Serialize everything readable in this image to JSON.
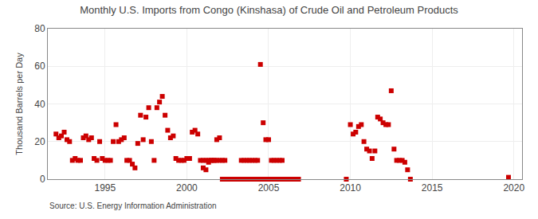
{
  "chart_data": {
    "type": "scatter",
    "title": "Monthly U.S. Imports from Congo (Kinshasa) of Crude Oil and Petroleum Products",
    "ylabel": "Thousand Barrels per Day",
    "annotations": [
      "Source: U.S. Energy Information Administration"
    ],
    "color": "#cc0000",
    "marker": "square",
    "grid": true,
    "xlim": [
      1991.5,
      2020.5
    ],
    "ylim": [
      0,
      80
    ],
    "xticks": [
      1995,
      2000,
      2005,
      2010,
      2015,
      2020
    ],
    "yticks": [
      0,
      20,
      40,
      60,
      80
    ],
    "x": [
      1992.0,
      1992.17,
      1992.33,
      1992.5,
      1992.67,
      1992.83,
      1993.0,
      1993.17,
      1993.33,
      1993.5,
      1993.67,
      1993.83,
      1994.0,
      1994.17,
      1994.33,
      1994.5,
      1994.67,
      1994.83,
      1995.0,
      1995.17,
      1995.33,
      1995.5,
      1995.67,
      1995.83,
      1996.0,
      1996.17,
      1996.33,
      1996.5,
      1996.67,
      1996.83,
      1997.0,
      1997.17,
      1997.33,
      1997.5,
      1997.67,
      1997.83,
      1998.0,
      1998.17,
      1998.33,
      1998.5,
      1998.67,
      1998.83,
      1999.0,
      1999.17,
      1999.33,
      1999.5,
      1999.67,
      1999.83,
      2000.0,
      2000.17,
      2000.33,
      2000.5,
      2000.67,
      2000.83,
      2001.0,
      2001.17,
      2001.33,
      2001.5,
      2001.67,
      2001.83,
      2002.0,
      2002.17,
      2002.33,
      2002.5,
      2002.67,
      2002.83,
      2003.0,
      2003.17,
      2003.33,
      2003.5,
      2003.67,
      2003.83,
      2004.0,
      2004.17,
      2004.33,
      2004.5,
      2004.67,
      2004.83,
      2005.0,
      2005.17,
      2005.33,
      2005.5,
      2005.67,
      2005.83,
      2006.0,
      2006.17,
      2006.33,
      2006.5,
      2006.67,
      2006.83,
      2001.0,
      2001.17,
      2001.33,
      2001.5,
      2001.67,
      2001.83,
      2002.0,
      2002.17,
      2002.33,
      2003.33,
      2003.5,
      2003.67,
      2003.83,
      2004.0,
      2004.17,
      2004.33,
      2004.5,
      2004.67,
      2004.83,
      2005.0,
      2005.17,
      2005.33,
      2005.5,
      2005.67,
      2005.83,
      2009.75,
      2010.0,
      2010.17,
      2010.33,
      2010.5,
      2010.67,
      2010.83,
      2011.0,
      2011.17,
      2011.33,
      2011.5,
      2011.67,
      2011.83,
      2012.0,
      2012.17,
      2012.33,
      2012.5,
      2012.67,
      2012.83,
      2013.0,
      2013.17,
      2013.33,
      2013.5,
      2013.67,
      2019.67
    ],
    "values": [
      24,
      22,
      23,
      25,
      21,
      20,
      10,
      11,
      10,
      10,
      22,
      23,
      21,
      22,
      11,
      10,
      20,
      11,
      10,
      10,
      10,
      20,
      29,
      20,
      21,
      22,
      10,
      10,
      8,
      6,
      19,
      34,
      21,
      33,
      38,
      20,
      10,
      38,
      41,
      44,
      34,
      26,
      22,
      23,
      11,
      10,
      10,
      10,
      11,
      11,
      25,
      26,
      24,
      10,
      6,
      5,
      9,
      10,
      10,
      21,
      22,
      0,
      0,
      0,
      0,
      0,
      0,
      0,
      0,
      0,
      0,
      0,
      0,
      0,
      0,
      0,
      0,
      0,
      0,
      0,
      0,
      0,
      0,
      0,
      0,
      0,
      0,
      0,
      0,
      0,
      10,
      10,
      10,
      10,
      10,
      10,
      10,
      10,
      10,
      10,
      10,
      10,
      10,
      10,
      10,
      10,
      61,
      30,
      21,
      21,
      10,
      10,
      10,
      10,
      10,
      0,
      29,
      24,
      25,
      28,
      29,
      20,
      16,
      15,
      11,
      15,
      33,
      32,
      30,
      29,
      29,
      47,
      16,
      10,
      10,
      10,
      9,
      5,
      0,
      1
    ]
  }
}
